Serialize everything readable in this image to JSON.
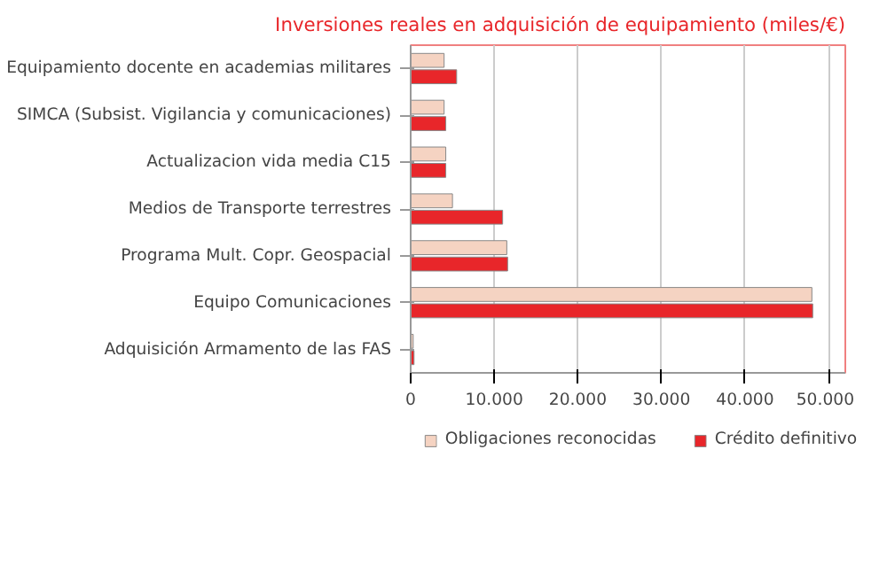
{
  "chart_data": {
    "type": "bar",
    "orientation": "horizontal",
    "title": "Inversiones reales en adquisición de equipamiento (miles/€)",
    "categories": [
      "Equipamiento docente en academias militares",
      "SIMCA (Subsist. Vigilancia y comunicaciones)",
      "Actualizacion vida media C15",
      "Medios de Transporte terrestres",
      "Programa Mult. Copr. Geospacial",
      "Equipo Comunicaciones",
      "Adquisición Armamento de las FAS"
    ],
    "series": [
      {
        "name": "Obligaciones reconocidas",
        "color": "#f5d3c2",
        "values": [
          4000,
          4000,
          4200,
          5000,
          11500,
          48000,
          300
        ]
      },
      {
        "name": "Crédito definitivo",
        "color": "#e8262a",
        "values": [
          5500,
          4200,
          4200,
          11000,
          11600,
          48100,
          400
        ]
      }
    ],
    "xlim": [
      0,
      52000
    ],
    "xticks": [
      0,
      {
        "value": 10000,
        "label": "10.000"
      },
      {
        "value": 20000,
        "label": "20.000"
      },
      {
        "value": 30000,
        "label": "30.000"
      },
      {
        "value": 40000,
        "label": "40.000"
      },
      {
        "value": 50000,
        "label": "50.000"
      }
    ],
    "grid": "x",
    "legend": "bottom"
  }
}
